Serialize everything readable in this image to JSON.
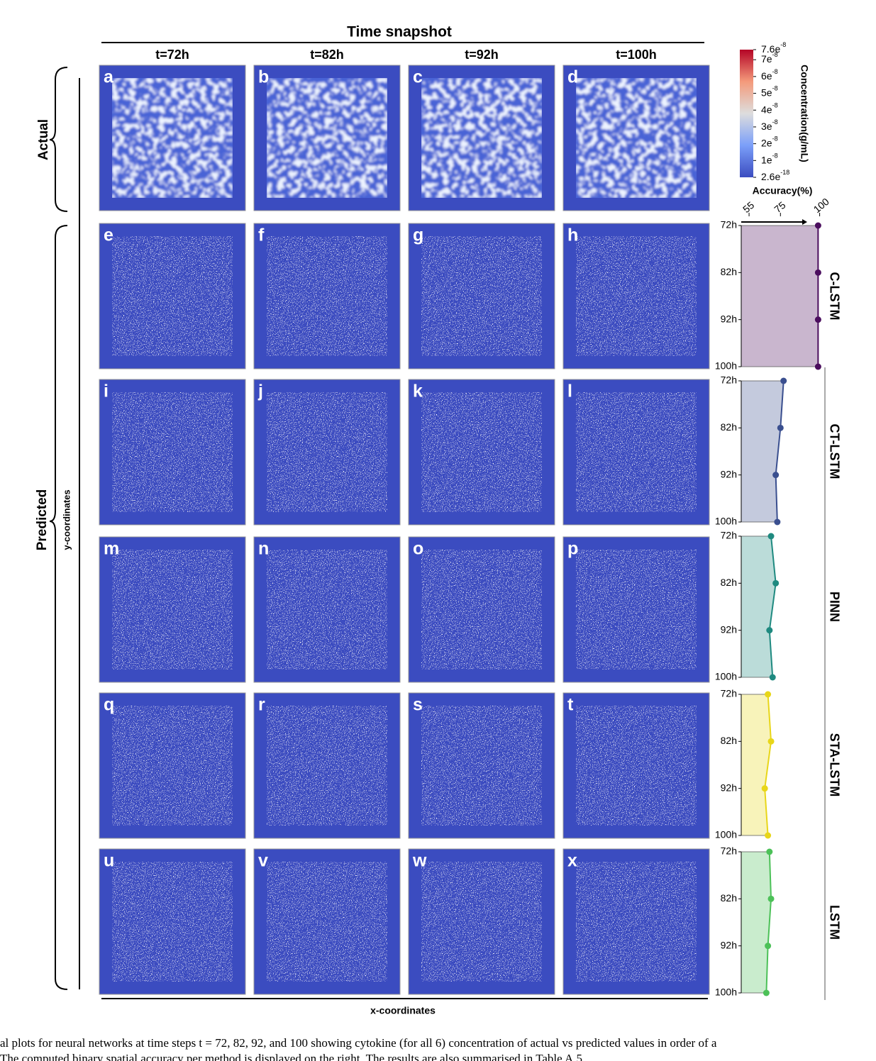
{
  "header": {
    "title": "Time snapshot",
    "columns": [
      "t=72h",
      "t=82h",
      "t=92h",
      "t=100h"
    ]
  },
  "labels": {
    "actual": "Actual",
    "predicted": "Predicted",
    "y_axis": "y-coordinates",
    "x_axis": "x-coordinates"
  },
  "panels": [
    "a",
    "b",
    "c",
    "d",
    "e",
    "f",
    "g",
    "h",
    "i",
    "j",
    "k",
    "l",
    "m",
    "n",
    "o",
    "p",
    "q",
    "r",
    "s",
    "t",
    "u",
    "v",
    "w",
    "x"
  ],
  "colorbar": {
    "title": "Concentration(g/mL)",
    "lim": [
      2.6e-18,
      7.6e-08
    ],
    "ticks": [
      {
        "value": 7.6e-08,
        "base": "7.6e",
        "exp": "-8"
      },
      {
        "value": 7e-08,
        "base": "7e",
        "exp": "-8"
      },
      {
        "value": 6e-08,
        "base": "6e",
        "exp": "-8"
      },
      {
        "value": 5e-08,
        "base": "5e",
        "exp": "-8"
      },
      {
        "value": 4e-08,
        "base": "4e",
        "exp": "-8"
      },
      {
        "value": 3e-08,
        "base": "3e",
        "exp": "-8"
      },
      {
        "value": 2e-08,
        "base": "2e",
        "exp": "-8"
      },
      {
        "value": 1e-08,
        "base": "1e",
        "exp": "-8"
      },
      {
        "value": 2.6e-18,
        "base": "2.6e",
        "exp": "-18"
      }
    ]
  },
  "chart_data": {
    "type": "line",
    "title": "Accuracy(%)",
    "xlim": [
      50,
      102
    ],
    "xticks": [
      55,
      75,
      100
    ],
    "categories": [
      "72h",
      "82h",
      "92h",
      "100h"
    ],
    "series": [
      {
        "name": "C-LSTM",
        "color": "#4b0e5e",
        "values": [
          99,
          99,
          99,
          99
        ]
      },
      {
        "name": "CT-LSTM",
        "color": "#3a4f8f",
        "values": [
          77,
          75,
          72,
          73
        ]
      },
      {
        "name": "PINN",
        "color": "#1f8a80",
        "values": [
          69,
          72,
          68,
          70
        ]
      },
      {
        "name": "STA-LSTM",
        "color": "#e8d619",
        "values": [
          67,
          69,
          65,
          67
        ]
      },
      {
        "name": "LSTM",
        "color": "#4cc158",
        "values": [
          68,
          69,
          67,
          66
        ]
      }
    ]
  },
  "caption": [
    "al plots for neural networks at time steps t = 72, 82, 92, and 100 showing cytokine (for all 6) concentration of actual vs predicted values in order of a",
    "The computed binary spatial accuracy per method is displayed on the right. The results are also summarised in Table A.5."
  ]
}
